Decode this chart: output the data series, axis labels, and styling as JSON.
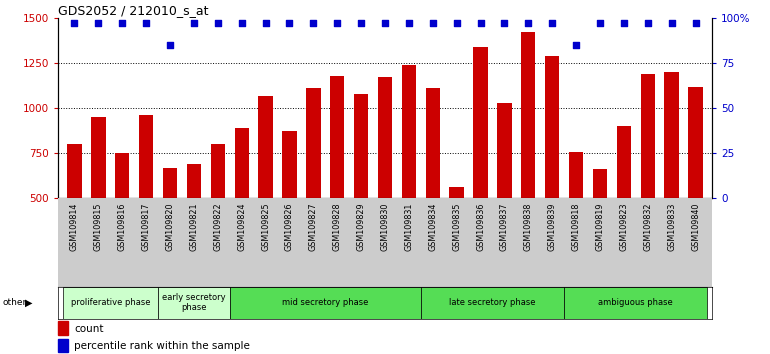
{
  "title": "GDS2052 / 212010_s_at",
  "samples": [
    "GSM109814",
    "GSM109815",
    "GSM109816",
    "GSM109817",
    "GSM109820",
    "GSM109821",
    "GSM109822",
    "GSM109824",
    "GSM109825",
    "GSM109826",
    "GSM109827",
    "GSM109828",
    "GSM109829",
    "GSM109830",
    "GSM109831",
    "GSM109834",
    "GSM109835",
    "GSM109836",
    "GSM109837",
    "GSM109838",
    "GSM109839",
    "GSM109818",
    "GSM109819",
    "GSM109823",
    "GSM109832",
    "GSM109833",
    "GSM109840"
  ],
  "counts": [
    800,
    950,
    750,
    960,
    670,
    690,
    800,
    890,
    1065,
    870,
    1110,
    1175,
    1075,
    1170,
    1240,
    1110,
    560,
    1340,
    1025,
    1420,
    1290,
    755,
    660,
    900,
    1190,
    1200,
    1115
  ],
  "percentile_ranks": [
    97,
    97,
    97,
    97,
    85,
    97,
    97,
    97,
    97,
    97,
    97,
    97,
    97,
    97,
    97,
    97,
    97,
    97,
    97,
    97,
    97,
    85,
    97,
    97,
    97,
    97,
    97
  ],
  "phases": [
    {
      "name": "proliferative phase",
      "start": 0,
      "end": 3,
      "color": "#ccffcc"
    },
    {
      "name": "early secretory\nphase",
      "start": 4,
      "end": 6,
      "color": "#ccffcc"
    },
    {
      "name": "mid secretory phase",
      "start": 7,
      "end": 14,
      "color": "#55dd55"
    },
    {
      "name": "late secretory phase",
      "start": 15,
      "end": 20,
      "color": "#55dd55"
    },
    {
      "name": "ambiguous phase",
      "start": 21,
      "end": 26,
      "color": "#55dd55"
    }
  ],
  "bar_color": "#cc0000",
  "dot_color": "#0000cc",
  "ylim_left": [
    500,
    1500
  ],
  "ylim_right": [
    0,
    100
  ],
  "yticks_left": [
    500,
    750,
    1000,
    1250,
    1500
  ],
  "yticks_right": [
    0,
    25,
    50,
    75,
    100
  ],
  "grid_values": [
    750,
    1000,
    1250
  ],
  "background_color": "#ffffff",
  "xticklabel_bg": "#cccccc"
}
